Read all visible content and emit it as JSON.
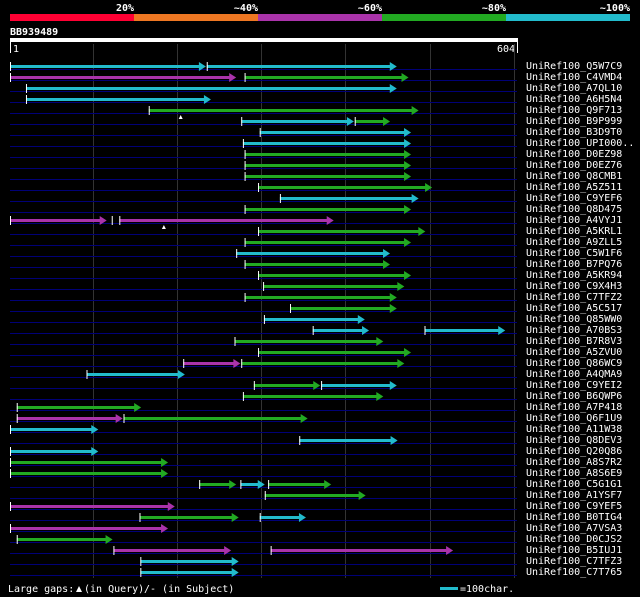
{
  "query": {
    "name": "BB939489",
    "start": "1",
    "end": "604",
    "length": 604
  },
  "legend": {
    "scale_labels": [
      "20%",
      "~40%",
      "~60%",
      "~80%",
      "~100%"
    ],
    "scale_colors": [
      "#ff0033",
      "#ee7722",
      "#aa33aa",
      "#22aa22",
      "#22bbcc"
    ],
    "gaps_label": "Large gaps: ",
    "gap_query_label": "(in Query)",
    "gap_subject_label": "/- (in Subject)",
    "scale_bar_label": "=100char."
  },
  "colors": {
    "purple": "#aa33aa",
    "green": "#22aa22",
    "cyan": "#22bbcc",
    "grid": "#333333",
    "row_line": "#000077"
  },
  "hits": [
    {
      "name": "UniRef100_Q5W7C9",
      "segments": [
        {
          "start": 1,
          "end": 234,
          "color": "cyan"
        },
        {
          "start": 235,
          "end": 461,
          "color": "cyan"
        }
      ]
    },
    {
      "name": "UniRef100_C4VMD4",
      "segments": [
        {
          "start": 1,
          "end": 270,
          "color": "purple"
        },
        {
          "start": 280,
          "end": 475,
          "color": "green"
        }
      ]
    },
    {
      "name": "UniRef100_A7QL10",
      "segments": [
        {
          "start": 20,
          "end": 461,
          "color": "cyan"
        }
      ]
    },
    {
      "name": "UniRef100_A6H5N4",
      "segments": [
        {
          "start": 20,
          "end": 240,
          "color": "cyan"
        }
      ]
    },
    {
      "name": "UniRef100_Q9F713",
      "segments": [
        {
          "start": 166,
          "end": 487,
          "color": "green"
        }
      ],
      "query_gaps": [
        204
      ]
    },
    {
      "name": "UniRef100_B9P999",
      "segments": [
        {
          "start": 276,
          "end": 410,
          "color": "cyan"
        },
        {
          "start": 411,
          "end": 453,
          "color": "green"
        }
      ]
    },
    {
      "name": "UniRef100_B3D9T0",
      "segments": [
        {
          "start": 298,
          "end": 478,
          "color": "cyan"
        }
      ]
    },
    {
      "name": "UniRef100_UPI000..",
      "segments": [
        {
          "start": 278,
          "end": 478,
          "color": "cyan"
        }
      ]
    },
    {
      "name": "UniRef100_D0EZ98",
      "segments": [
        {
          "start": 280,
          "end": 478,
          "color": "green"
        }
      ]
    },
    {
      "name": "UniRef100_D0EZ76",
      "segments": [
        {
          "start": 280,
          "end": 478,
          "color": "green"
        }
      ]
    },
    {
      "name": "UniRef100_Q8CMB1",
      "segments": [
        {
          "start": 280,
          "end": 478,
          "color": "green"
        }
      ]
    },
    {
      "name": "UniRef100_A5Z511",
      "segments": [
        {
          "start": 296,
          "end": 503,
          "color": "green"
        }
      ]
    },
    {
      "name": "UniRef100_C9YEF6",
      "segments": [
        {
          "start": 322,
          "end": 487,
          "color": "cyan"
        }
      ]
    },
    {
      "name": "UniRef100_Q8D475",
      "segments": [
        {
          "start": 280,
          "end": 478,
          "color": "green"
        }
      ]
    },
    {
      "name": "UniRef100_A4VYJ1",
      "segments": [
        {
          "start": 1,
          "end": 116,
          "color": "purple"
        },
        {
          "start": 131,
          "end": 386,
          "color": "purple"
        }
      ],
      "query_gaps": [
        184
      ],
      "subject_gaps": [
        122
      ]
    },
    {
      "name": "UniRef100_A5KRL1",
      "segments": [
        {
          "start": 296,
          "end": 495,
          "color": "green"
        }
      ]
    },
    {
      "name": "UniRef100_A9ZLL5",
      "segments": [
        {
          "start": 280,
          "end": 478,
          "color": "green"
        }
      ]
    },
    {
      "name": "UniRef100_C5W1F6",
      "segments": [
        {
          "start": 270,
          "end": 453,
          "color": "cyan"
        }
      ]
    },
    {
      "name": "UniRef100_B7PQ76",
      "segments": [
        {
          "start": 280,
          "end": 453,
          "color": "green"
        }
      ]
    },
    {
      "name": "UniRef100_A5KR94",
      "segments": [
        {
          "start": 296,
          "end": 478,
          "color": "green"
        }
      ]
    },
    {
      "name": "UniRef100_C9X4H3",
      "segments": [
        {
          "start": 302,
          "end": 470,
          "color": "green"
        }
      ]
    },
    {
      "name": "UniRef100_C7TFZ2",
      "segments": [
        {
          "start": 280,
          "end": 461,
          "color": "green"
        }
      ]
    },
    {
      "name": "UniRef100_A5C517",
      "segments": [
        {
          "start": 334,
          "end": 461,
          "color": "green"
        }
      ]
    },
    {
      "name": "UniRef100_Q85WW0",
      "segments": [
        {
          "start": 303,
          "end": 423,
          "color": "cyan"
        }
      ]
    },
    {
      "name": "UniRef100_A70BS3",
      "segments": [
        {
          "start": 361,
          "end": 428,
          "color": "cyan"
        },
        {
          "start": 494,
          "end": 590,
          "color": "cyan"
        }
      ]
    },
    {
      "name": "UniRef100_B7R8V3",
      "segments": [
        {
          "start": 268,
          "end": 445,
          "color": "green"
        }
      ]
    },
    {
      "name": "UniRef100_A5ZVU0",
      "segments": [
        {
          "start": 296,
          "end": 478,
          "color": "green"
        }
      ]
    },
    {
      "name": "UniRef100_Q86WC9",
      "segments": [
        {
          "start": 207,
          "end": 275,
          "color": "purple"
        },
        {
          "start": 276,
          "end": 470,
          "color": "green"
        }
      ]
    },
    {
      "name": "UniRef100_A4QMA9",
      "segments": [
        {
          "start": 92,
          "end": 209,
          "color": "cyan"
        }
      ]
    },
    {
      "name": "UniRef100_C9YEI2",
      "segments": [
        {
          "start": 291,
          "end": 370,
          "color": "green"
        },
        {
          "start": 371,
          "end": 461,
          "color": "cyan"
        }
      ]
    },
    {
      "name": "UniRef100_B6QWP6",
      "segments": [
        {
          "start": 278,
          "end": 445,
          "color": "green"
        }
      ]
    },
    {
      "name": "UniRef100_A7P418",
      "segments": [
        {
          "start": 9,
          "end": 157,
          "color": "green"
        }
      ]
    },
    {
      "name": "UniRef100_Q6F1U9",
      "segments": [
        {
          "start": 9,
          "end": 135,
          "color": "purple"
        },
        {
          "start": 136,
          "end": 355,
          "color": "green"
        }
      ]
    },
    {
      "name": "UniRef100_A11W38",
      "segments": [
        {
          "start": 1,
          "end": 106,
          "color": "cyan"
        }
      ]
    },
    {
      "name": "UniRef100_Q8DEV3",
      "segments": [
        {
          "start": 345,
          "end": 462,
          "color": "cyan"
        }
      ]
    },
    {
      "name": "UniRef100_Q20Q86",
      "segments": [
        {
          "start": 1,
          "end": 106,
          "color": "cyan"
        }
      ]
    },
    {
      "name": "UniRef100_A8S7R2",
      "segments": [
        {
          "start": 1,
          "end": 189,
          "color": "green"
        }
      ]
    },
    {
      "name": "UniRef100_A8S6E9",
      "segments": [
        {
          "start": 1,
          "end": 189,
          "color": "green"
        }
      ]
    },
    {
      "name": "UniRef100_C5G1G1",
      "segments": [
        {
          "start": 226,
          "end": 270,
          "color": "green"
        },
        {
          "start": 275,
          "end": 304,
          "color": "cyan"
        },
        {
          "start": 308,
          "end": 383,
          "color": "green"
        }
      ]
    },
    {
      "name": "UniRef100_A1YSF7",
      "segments": [
        {
          "start": 304,
          "end": 424,
          "color": "green"
        }
      ]
    },
    {
      "name": "UniRef100_C9YEF5",
      "segments": [
        {
          "start": 1,
          "end": 197,
          "color": "purple"
        }
      ]
    },
    {
      "name": "UniRef100_B0TIG4",
      "segments": [
        {
          "start": 155,
          "end": 273,
          "color": "green"
        },
        {
          "start": 298,
          "end": 353,
          "color": "cyan"
        }
      ]
    },
    {
      "name": "UniRef100_A7VSA3",
      "segments": [
        {
          "start": 1,
          "end": 189,
          "color": "purple"
        }
      ]
    },
    {
      "name": "UniRef100_D0CJS2",
      "segments": [
        {
          "start": 9,
          "end": 123,
          "color": "green"
        }
      ]
    },
    {
      "name": "UniRef100_B5IUJ1",
      "segments": [
        {
          "start": 124,
          "end": 264,
          "color": "purple"
        },
        {
          "start": 311,
          "end": 528,
          "color": "purple"
        }
      ]
    },
    {
      "name": "UniRef100_C7TFZ3",
      "segments": [
        {
          "start": 156,
          "end": 273,
          "color": "cyan"
        }
      ]
    },
    {
      "name": "UniRef100_C7T765",
      "segments": [
        {
          "start": 156,
          "end": 273,
          "color": "cyan"
        }
      ]
    }
  ]
}
